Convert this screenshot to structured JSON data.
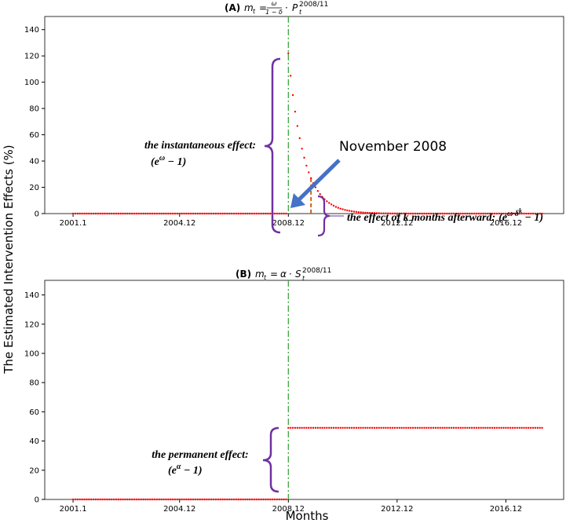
{
  "ylabel": "The Estimated Intervention Effects (%)",
  "xlabel": "Months",
  "chart_data": [
    {
      "type": "scatter",
      "title": {
        "label": "(A)",
        "lhs": "m",
        "lhs_sub": "t",
        "eq": "=",
        "num": "ω",
        "den": "1 − δ",
        "op": "·",
        "var": "P",
        "sub": "t",
        "sup": "2008/11"
      },
      "xlim": [
        -12.5,
        216.5
      ],
      "ylim": [
        0,
        150
      ],
      "xticks": [
        {
          "value": 0,
          "label": "2001.1"
        },
        {
          "value": 47,
          "label": "2004.12"
        },
        {
          "value": 95,
          "label": "2008.12"
        },
        {
          "value": 143,
          "label": "2012.12"
        },
        {
          "value": 191,
          "label": "2016.12"
        }
      ],
      "yticks": [
        0,
        20,
        40,
        60,
        80,
        100,
        120,
        140
      ],
      "vline_x": 95,
      "vline_color": "#2ca02c",
      "marker_line": {
        "x": 105,
        "y": 27.0,
        "color": "#c8651b"
      },
      "annotations": {
        "instant": "the instantaneous effect:",
        "instant_formula": [
          "(e",
          "ω",
          " − 1)"
        ],
        "arrow": "November 2008",
        "later": "the effect of k months afterward:",
        "later_formula": [
          "(e",
          "ω·δ",
          "k",
          " − 1)"
        ]
      },
      "series": [
        {
          "color": "#ff0000",
          "x": [
            0,
            1,
            2,
            3,
            4,
            5,
            6,
            7,
            8,
            9,
            10,
            11,
            12,
            13,
            14,
            15,
            16,
            17,
            18,
            19,
            20,
            21,
            22,
            23,
            24,
            25,
            26,
            27,
            28,
            29,
            30,
            31,
            32,
            33,
            34,
            35,
            36,
            37,
            38,
            39,
            40,
            41,
            42,
            43,
            44,
            45,
            46,
            47,
            48,
            49,
            50,
            51,
            52,
            53,
            54,
            55,
            56,
            57,
            58,
            59,
            60,
            61,
            62,
            63,
            64,
            65,
            66,
            67,
            68,
            69,
            70,
            71,
            72,
            73,
            74,
            75,
            76,
            77,
            78,
            79,
            80,
            81,
            82,
            83,
            84,
            85,
            86,
            87,
            88,
            89,
            90,
            91,
            92,
            93,
            94,
            95,
            96,
            97,
            98,
            99,
            100,
            101,
            102,
            103,
            104,
            105,
            106,
            107,
            108,
            109,
            110,
            111,
            112,
            113,
            114,
            115,
            116,
            117,
            118,
            119,
            120,
            121,
            122,
            123,
            124,
            125,
            126,
            127,
            128,
            129,
            130,
            131,
            132,
            133,
            134,
            135,
            136,
            137,
            138,
            139,
            140,
            141,
            142,
            143,
            144,
            145,
            146,
            147,
            148,
            149,
            150,
            151,
            152,
            153,
            154,
            155,
            156,
            157,
            158,
            159,
            160,
            161,
            162,
            163,
            164,
            165,
            166,
            167,
            168,
            169,
            170,
            171,
            172,
            173,
            174,
            175,
            176,
            177,
            178,
            179,
            180,
            181,
            182,
            183,
            184,
            185,
            186,
            187,
            188,
            189,
            190,
            191,
            192,
            193,
            194,
            195,
            196,
            197,
            198,
            199,
            200,
            201,
            202,
            203,
            204,
            205,
            206,
            207
          ],
          "values": [
            0,
            0,
            0,
            0,
            0,
            0,
            0,
            0,
            0,
            0,
            0,
            0,
            0,
            0,
            0,
            0,
            0,
            0,
            0,
            0,
            0,
            0,
            0,
            0,
            0,
            0,
            0,
            0,
            0,
            0,
            0,
            0,
            0,
            0,
            0,
            0,
            0,
            0,
            0,
            0,
            0,
            0,
            0,
            0,
            0,
            0,
            0,
            0,
            0,
            0,
            0,
            0,
            0,
            0,
            0,
            0,
            0,
            0,
            0,
            0,
            0,
            0,
            0,
            0,
            0,
            0,
            0,
            0,
            0,
            0,
            0,
            0,
            0,
            0,
            0,
            0,
            0,
            0,
            0,
            0,
            0,
            0,
            0,
            0,
            0,
            0,
            0,
            0,
            0,
            0,
            0,
            0,
            0,
            0,
            0,
            122.0,
            104.9,
            90.2,
            77.6,
            66.7,
            57.4,
            49.4,
            42.5,
            36.5,
            31.4,
            27.0,
            23.2,
            20.0,
            17.2,
            14.8,
            12.7,
            10.9,
            9.4,
            8.1,
            7.0,
            6.0,
            5.1,
            4.4,
            3.8,
            3.3,
            2.8,
            2.4,
            2.1,
            1.8,
            1.5,
            1.3,
            1.1,
            1.0,
            0.8,
            0.7,
            0.6,
            0.5,
            0.5,
            0.4,
            0.3,
            0.3,
            0.2,
            0.2,
            0.2,
            0.2,
            0.1,
            0.1,
            0.1,
            0.1,
            0.1,
            0.1,
            0.1,
            0.1,
            0,
            0,
            0,
            0,
            0,
            0,
            0,
            0,
            0,
            0,
            0,
            0,
            0,
            0,
            0,
            0,
            0,
            0,
            0,
            0,
            0,
            0,
            0,
            0,
            0,
            0,
            0,
            0,
            0,
            0,
            0,
            0,
            0,
            0,
            0,
            0,
            0,
            0,
            0,
            0,
            0,
            0,
            0,
            0,
            0,
            0,
            0,
            0,
            0,
            0,
            0,
            0,
            0,
            0,
            0,
            0,
            0,
            0,
            0,
            0
          ]
        }
      ]
    },
    {
      "type": "scatter",
      "title": {
        "label": "(B)",
        "lhs": "m",
        "lhs_sub": "t",
        "eq": "=",
        "coef": "α",
        "op": "·",
        "var": "S",
        "sub": "t",
        "sup": "2008/11"
      },
      "xlim": [
        -12.5,
        216.5
      ],
      "ylim": [
        0,
        150
      ],
      "xticks": [
        {
          "value": 0,
          "label": "2001.1"
        },
        {
          "value": 47,
          "label": "2004.12"
        },
        {
          "value": 95,
          "label": "2008.12"
        },
        {
          "value": 143,
          "label": "2012.12"
        },
        {
          "value": 191,
          "label": "2016.12"
        }
      ],
      "yticks": [
        0,
        20,
        40,
        60,
        80,
        100,
        120,
        140
      ],
      "vline_x": 95,
      "vline_color": "#2ca02c",
      "annotations": {
        "permanent": "the permanent effect:",
        "permanent_formula": [
          "(e",
          "α",
          " − 1)"
        ]
      },
      "series": [
        {
          "color": "#ff0000",
          "x": [
            0,
            1,
            2,
            3,
            4,
            5,
            6,
            7,
            8,
            9,
            10,
            11,
            12,
            13,
            14,
            15,
            16,
            17,
            18,
            19,
            20,
            21,
            22,
            23,
            24,
            25,
            26,
            27,
            28,
            29,
            30,
            31,
            32,
            33,
            34,
            35,
            36,
            37,
            38,
            39,
            40,
            41,
            42,
            43,
            44,
            45,
            46,
            47,
            48,
            49,
            50,
            51,
            52,
            53,
            54,
            55,
            56,
            57,
            58,
            59,
            60,
            61,
            62,
            63,
            64,
            65,
            66,
            67,
            68,
            69,
            70,
            71,
            72,
            73,
            74,
            75,
            76,
            77,
            78,
            79,
            80,
            81,
            82,
            83,
            84,
            85,
            86,
            87,
            88,
            89,
            90,
            91,
            92,
            93,
            94,
            95,
            96,
            97,
            98,
            99,
            100,
            101,
            102,
            103,
            104,
            105,
            106,
            107,
            108,
            109,
            110,
            111,
            112,
            113,
            114,
            115,
            116,
            117,
            118,
            119,
            120,
            121,
            122,
            123,
            124,
            125,
            126,
            127,
            128,
            129,
            130,
            131,
            132,
            133,
            134,
            135,
            136,
            137,
            138,
            139,
            140,
            141,
            142,
            143,
            144,
            145,
            146,
            147,
            148,
            149,
            150,
            151,
            152,
            153,
            154,
            155,
            156,
            157,
            158,
            159,
            160,
            161,
            162,
            163,
            164,
            165,
            166,
            167,
            168,
            169,
            170,
            171,
            172,
            173,
            174,
            175,
            176,
            177,
            178,
            179,
            180,
            181,
            182,
            183,
            184,
            185,
            186,
            187,
            188,
            189,
            190,
            191,
            192,
            193,
            194,
            195,
            196,
            197,
            198,
            199,
            200,
            201,
            202,
            203,
            204,
            205,
            206,
            207
          ],
          "values": [
            0,
            0,
            0,
            0,
            0,
            0,
            0,
            0,
            0,
            0,
            0,
            0,
            0,
            0,
            0,
            0,
            0,
            0,
            0,
            0,
            0,
            0,
            0,
            0,
            0,
            0,
            0,
            0,
            0,
            0,
            0,
            0,
            0,
            0,
            0,
            0,
            0,
            0,
            0,
            0,
            0,
            0,
            0,
            0,
            0,
            0,
            0,
            0,
            0,
            0,
            0,
            0,
            0,
            0,
            0,
            0,
            0,
            0,
            0,
            0,
            0,
            0,
            0,
            0,
            0,
            0,
            0,
            0,
            0,
            0,
            0,
            0,
            0,
            0,
            0,
            0,
            0,
            0,
            0,
            0,
            0,
            0,
            0,
            0,
            0,
            0,
            0,
            0,
            0,
            0,
            0,
            0,
            0,
            0,
            0,
            49,
            49,
            49,
            49,
            49,
            49,
            49,
            49,
            49,
            49,
            49,
            49,
            49,
            49,
            49,
            49,
            49,
            49,
            49,
            49,
            49,
            49,
            49,
            49,
            49,
            49,
            49,
            49,
            49,
            49,
            49,
            49,
            49,
            49,
            49,
            49,
            49,
            49,
            49,
            49,
            49,
            49,
            49,
            49,
            49,
            49,
            49,
            49,
            49,
            49,
            49,
            49,
            49,
            49,
            49,
            49,
            49,
            49,
            49,
            49,
            49,
            49,
            49,
            49,
            49,
            49,
            49,
            49,
            49,
            49,
            49,
            49,
            49,
            49,
            49,
            49,
            49,
            49,
            49,
            49,
            49,
            49,
            49,
            49,
            49,
            49,
            49,
            49,
            49,
            49,
            49,
            49,
            49,
            49,
            49,
            49,
            49,
            49,
            49,
            49,
            49,
            49,
            49,
            49,
            49,
            49,
            49,
            49,
            49,
            49,
            49,
            49,
            49
          ]
        }
      ]
    }
  ]
}
